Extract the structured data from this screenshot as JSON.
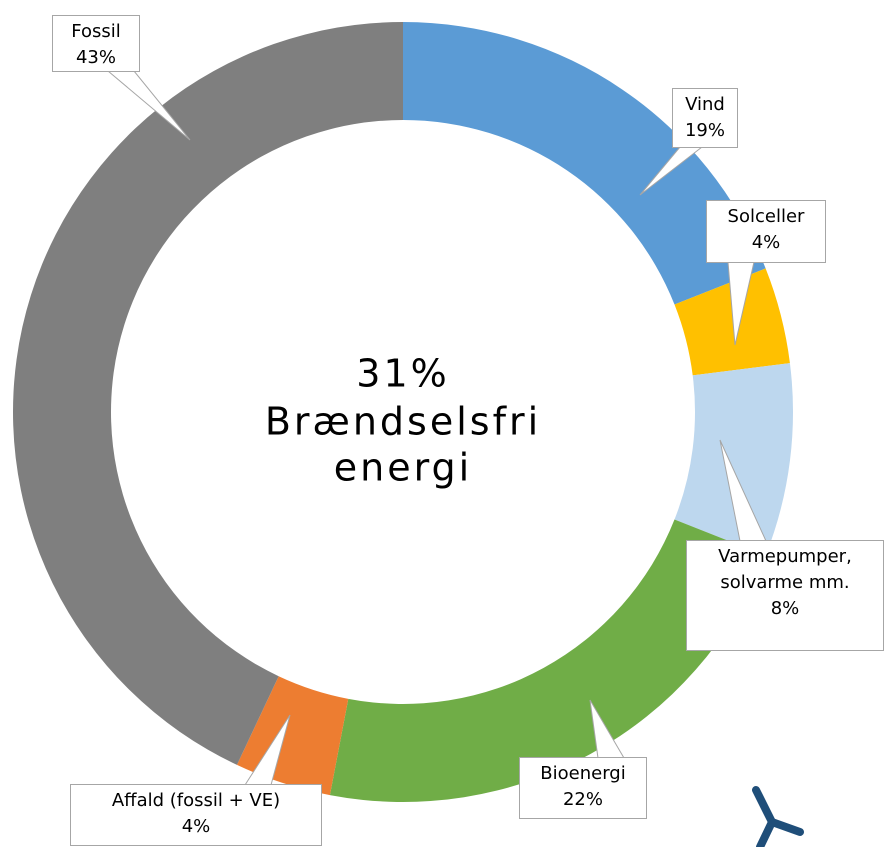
{
  "chart_data": {
    "type": "donut",
    "center_text": [
      "31%",
      "Brændselsfri",
      "energi"
    ],
    "categories": [
      "Vind",
      "Solceller",
      "Varmepumper, solvarme mm.",
      "Bioenergi",
      "Affald (fossil + VE)",
      "Fossil"
    ],
    "values": [
      19,
      4,
      8,
      22,
      4,
      43
    ],
    "value_labels": [
      "19%",
      "4%",
      "8%",
      "22%",
      "4%",
      "43%"
    ],
    "colors": [
      "#5b9bd5",
      "#ffc000",
      "#bdd7ee",
      "#70ad47",
      "#ed7d31",
      "#7f7f7f"
    ]
  }
}
